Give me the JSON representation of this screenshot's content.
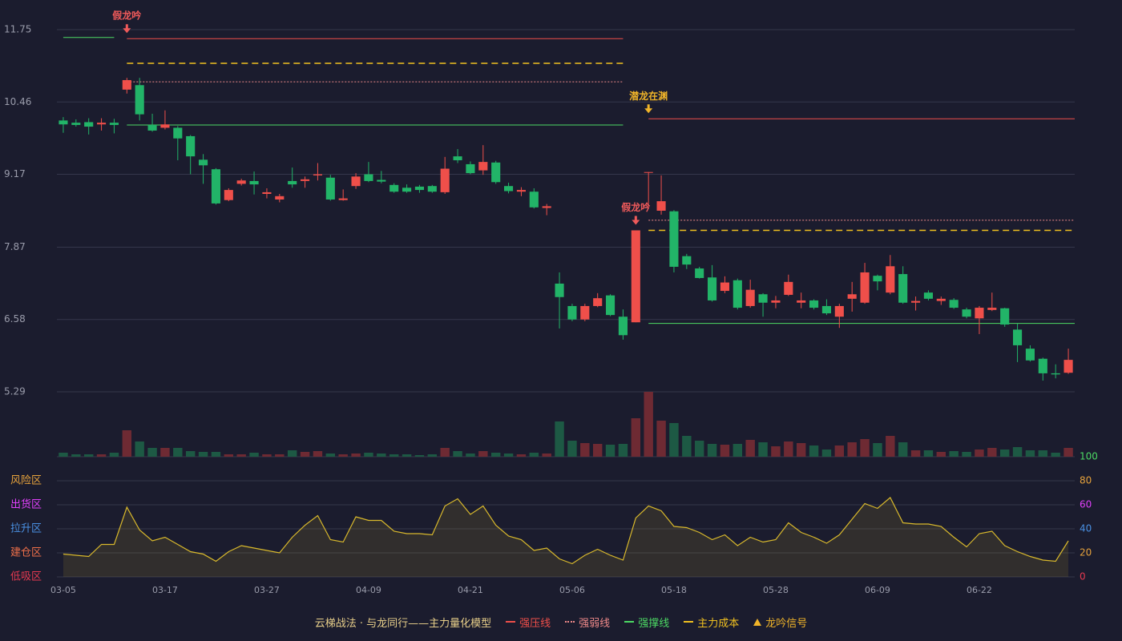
{
  "chart_data": {
    "type": "candlestick",
    "categories": [
      "03-05",
      null,
      null,
      null,
      null,
      null,
      null,
      null,
      "03-17",
      null,
      null,
      null,
      null,
      null,
      null,
      null,
      "03-27",
      null,
      null,
      null,
      null,
      null,
      null,
      null,
      "04-09",
      null,
      null,
      null,
      null,
      null,
      null,
      null,
      "04-21",
      null,
      null,
      null,
      null,
      null,
      null,
      null,
      "05-06",
      null,
      null,
      null,
      null,
      null,
      null,
      null,
      "05-18",
      null,
      null,
      null,
      null,
      null,
      null,
      null,
      "05-28",
      null,
      null,
      null,
      null,
      null,
      null,
      null,
      "06-09",
      null,
      null,
      null,
      null,
      null,
      null,
      null,
      "06-22",
      null,
      null,
      null,
      null,
      null,
      null,
      null
    ],
    "open": [
      10.13,
      10.09,
      10.1,
      10.06,
      10.09,
      10.68,
      10.76,
      10.05,
      10.0,
      10.0,
      9.85,
      9.43,
      9.26,
      8.71,
      9.0,
      9.05,
      8.82,
      8.72,
      9.05,
      9.05,
      9.15,
      9.11,
      8.71,
      8.96,
      9.17,
      9.07,
      8.98,
      8.93,
      8.95,
      8.96,
      8.85,
      9.49,
      9.35,
      9.24,
      9.38,
      8.96,
      8.86,
      8.86,
      8.57,
      7.22,
      6.82,
      6.58,
      6.82,
      7.01,
      6.63,
      6.53,
      9.2,
      8.52,
      8.51,
      7.71,
      7.49,
      7.33,
      7.09,
      7.28,
      6.82,
      7.03,
      6.88,
      7.02,
      6.88,
      6.92,
      6.82,
      6.63,
      6.95,
      6.88,
      7.36,
      7.06,
      7.39,
      6.88,
      7.06,
      6.91,
      6.93,
      6.76,
      6.6,
      6.75,
      6.78,
      6.4,
      6.06,
      5.88,
      5.62,
      5.63
    ],
    "close": [
      10.06,
      10.05,
      10.02,
      10.09,
      10.05,
      10.85,
      10.24,
      9.95,
      10.06,
      9.81,
      9.49,
      9.33,
      8.65,
      8.89,
      9.06,
      8.99,
      8.85,
      8.78,
      8.99,
      9.08,
      9.17,
      8.72,
      8.74,
      9.13,
      9.05,
      9.04,
      8.86,
      8.86,
      8.89,
      8.86,
      9.27,
      9.42,
      9.19,
      9.39,
      9.03,
      8.87,
      8.89,
      8.58,
      8.6,
      6.98,
      6.58,
      6.82,
      6.96,
      6.66,
      6.3,
      8.17,
      9.21,
      8.69,
      7.52,
      7.56,
      7.32,
      6.92,
      7.24,
      6.79,
      7.11,
      6.88,
      6.92,
      7.25,
      6.92,
      6.79,
      6.69,
      6.82,
      7.03,
      7.42,
      7.26,
      7.53,
      6.88,
      6.91,
      6.95,
      6.95,
      6.79,
      6.63,
      6.79,
      6.79,
      6.49,
      6.12,
      5.85,
      5.62,
      5.6,
      5.86
    ],
    "high": [
      10.19,
      10.15,
      10.17,
      10.17,
      10.16,
      10.89,
      10.89,
      10.25,
      10.31,
      10.03,
      9.87,
      9.53,
      9.28,
      8.92,
      9.09,
      9.22,
      8.92,
      8.82,
      9.29,
      9.13,
      9.37,
      9.16,
      8.9,
      9.19,
      9.39,
      9.23,
      9.01,
      8.99,
      8.98,
      8.98,
      9.48,
      9.62,
      9.4,
      9.69,
      9.41,
      9.02,
      8.94,
      8.92,
      8.64,
      7.42,
      6.86,
      6.86,
      7.05,
      7.03,
      6.76,
      8.17,
      9.21,
      9.15,
      8.53,
      7.75,
      7.52,
      7.55,
      7.35,
      7.31,
      7.29,
      7.05,
      7.0,
      7.38,
      7.06,
      6.94,
      6.94,
      6.86,
      7.25,
      7.59,
      7.38,
      7.73,
      7.53,
      6.99,
      7.1,
      6.99,
      6.96,
      6.79,
      6.82,
      7.06,
      6.79,
      6.51,
      6.12,
      5.9,
      5.78,
      6.06
    ],
    "low": [
      9.91,
      10.02,
      9.88,
      9.95,
      9.9,
      10.61,
      10.13,
      9.93,
      9.97,
      9.42,
      9.17,
      9.0,
      8.63,
      8.69,
      8.97,
      8.81,
      8.74,
      8.67,
      8.93,
      8.93,
      9.06,
      8.7,
      8.7,
      8.91,
      9.03,
      9.01,
      8.84,
      8.84,
      8.84,
      8.84,
      8.82,
      9.37,
      9.17,
      9.16,
      9.0,
      8.83,
      8.78,
      8.56,
      8.44,
      6.42,
      6.55,
      6.55,
      6.8,
      6.64,
      6.22,
      6.53,
      8.59,
      8.45,
      7.42,
      7.48,
      7.31,
      6.9,
      7.05,
      6.76,
      6.79,
      6.63,
      6.78,
      7.0,
      6.78,
      6.76,
      6.66,
      6.43,
      6.72,
      6.86,
      7.1,
      7.03,
      6.86,
      6.74,
      6.92,
      6.84,
      6.77,
      6.6,
      6.32,
      6.73,
      6.45,
      5.82,
      5.83,
      5.49,
      5.53,
      5.61
    ],
    "up_color": "#ef4f4a",
    "down_color": "#22b468",
    "ylim": [
      5.29,
      11.75
    ],
    "yticks": [
      11.75,
      10.46,
      9.17,
      7.87,
      6.58,
      5.29
    ],
    "grid": true,
    "volume": {
      "values": [
        5,
        3,
        3,
        3,
        5,
        33,
        19,
        11,
        11,
        11,
        7,
        6,
        6,
        3,
        3,
        5,
        3,
        3,
        8,
        6,
        7,
        4,
        3,
        4,
        5,
        4,
        3,
        3,
        2,
        3,
        11,
        7,
        4,
        7,
        5,
        4,
        3,
        5,
        4,
        44,
        20,
        17,
        16,
        15,
        16,
        48,
        81,
        45,
        42,
        26,
        20,
        16,
        15,
        16,
        21,
        18,
        13,
        19,
        17,
        14,
        9,
        14,
        18,
        22,
        17,
        26,
        18,
        8,
        8,
        6,
        7,
        6,
        9,
        11,
        9,
        12,
        8,
        8,
        5,
        11
      ],
      "ylim": [
        0,
        81
      ],
      "up_color": "#6e2a33",
      "down_color": "#1d5944"
    },
    "lines": [
      {
        "name": "强压线",
        "color": "#ef4f4a",
        "dash": "none",
        "values": [
          null,
          null,
          null,
          null,
          null,
          11.59,
          11.59,
          11.59,
          11.59,
          11.59,
          11.59,
          11.59,
          11.59,
          11.59,
          11.59,
          11.59,
          11.59,
          11.59,
          11.59,
          11.59,
          11.59,
          11.59,
          11.59,
          11.59,
          11.59,
          11.59,
          11.59,
          11.59,
          11.59,
          11.59,
          11.59,
          11.59,
          11.59,
          11.59,
          11.59,
          11.59,
          11.59,
          11.59,
          11.59,
          11.59,
          11.59,
          11.59,
          11.59,
          11.59,
          11.59,
          null,
          10.16,
          10.16,
          10.16,
          10.16,
          10.16,
          10.16,
          10.16,
          10.16,
          10.16,
          10.16,
          10.16,
          10.16,
          10.16,
          10.16,
          10.16,
          10.16,
          10.16,
          10.16,
          10.16,
          10.16,
          10.16,
          10.16,
          10.16,
          10.16,
          10.16,
          10.16,
          10.16,
          10.16,
          10.16,
          10.16,
          10.16,
          10.16,
          10.16,
          10.16
        ]
      },
      {
        "name": "强弱线",
        "color": "#f08a8a",
        "dash": "2 2",
        "values": [
          null,
          null,
          null,
          null,
          null,
          10.82,
          10.82,
          10.82,
          10.82,
          10.82,
          10.82,
          10.82,
          10.82,
          10.82,
          10.82,
          10.82,
          10.82,
          10.82,
          10.82,
          10.82,
          10.82,
          10.82,
          10.82,
          10.82,
          10.82,
          10.82,
          10.82,
          10.82,
          10.82,
          10.82,
          10.82,
          10.82,
          10.82,
          10.82,
          10.82,
          10.82,
          10.82,
          10.82,
          10.82,
          10.82,
          10.82,
          10.82,
          10.82,
          10.82,
          10.82,
          null,
          8.35,
          8.35,
          8.35,
          8.35,
          8.35,
          8.35,
          8.35,
          8.35,
          8.35,
          8.35,
          8.35,
          8.35,
          8.35,
          8.35,
          8.35,
          8.35,
          8.35,
          8.35,
          8.35,
          8.35,
          8.35,
          8.35,
          8.35,
          8.35,
          8.35,
          8.35,
          8.35,
          8.35,
          8.35,
          8.35,
          8.35,
          8.35,
          8.35,
          8.35
        ]
      },
      {
        "name": "强撑线",
        "color": "#4cd964",
        "dash": "none",
        "values": [
          11.61,
          11.61,
          11.61,
          11.61,
          11.61,
          10.05,
          10.05,
          10.05,
          10.05,
          10.05,
          10.05,
          10.05,
          10.05,
          10.05,
          10.05,
          10.05,
          10.05,
          10.05,
          10.05,
          10.05,
          10.05,
          10.05,
          10.05,
          10.05,
          10.05,
          10.05,
          10.05,
          10.05,
          10.05,
          10.05,
          10.05,
          10.05,
          10.05,
          10.05,
          10.05,
          10.05,
          10.05,
          10.05,
          10.05,
          10.05,
          10.05,
          10.05,
          10.05,
          10.05,
          10.05,
          null,
          6.51,
          6.51,
          6.51,
          6.51,
          6.51,
          6.51,
          6.51,
          6.51,
          6.51,
          6.51,
          6.51,
          6.51,
          6.51,
          6.51,
          6.51,
          6.51,
          6.51,
          6.51,
          6.51,
          6.51,
          6.51,
          6.51,
          6.51,
          6.51,
          6.51,
          6.51,
          6.51,
          6.51,
          6.51,
          6.51,
          6.51,
          6.51,
          6.51,
          6.51
        ]
      },
      {
        "name": "主力成本",
        "color": "#f0c020",
        "dash": "8 5",
        "values": [
          null,
          null,
          null,
          null,
          null,
          11.15,
          11.15,
          11.15,
          11.15,
          11.15,
          11.15,
          11.15,
          11.15,
          11.15,
          11.15,
          11.15,
          11.15,
          11.15,
          11.15,
          11.15,
          11.15,
          11.15,
          11.15,
          11.15,
          11.15,
          11.15,
          11.15,
          11.15,
          11.15,
          11.15,
          11.15,
          11.15,
          11.15,
          11.15,
          11.15,
          11.15,
          11.15,
          11.15,
          11.15,
          11.15,
          11.15,
          11.15,
          11.15,
          11.15,
          11.15,
          null,
          8.17,
          8.17,
          8.17,
          8.17,
          8.17,
          8.17,
          8.17,
          8.17,
          8.17,
          8.17,
          8.17,
          8.17,
          8.17,
          8.17,
          8.17,
          8.17,
          8.17,
          8.17,
          8.17,
          8.17,
          8.17,
          8.17,
          8.17,
          8.17,
          8.17,
          8.17,
          8.17,
          8.17,
          8.17,
          8.17,
          8.17,
          8.17,
          8.17,
          8.17
        ]
      }
    ],
    "signals": [
      null,
      null,
      null,
      null,
      null,
      "假龙吟",
      null,
      null,
      null,
      null,
      null,
      null,
      null,
      null,
      null,
      null,
      null,
      null,
      null,
      null,
      null,
      null,
      null,
      null,
      null,
      null,
      null,
      null,
      null,
      null,
      null,
      null,
      null,
      null,
      null,
      null,
      null,
      null,
      null,
      null,
      null,
      null,
      null,
      null,
      null,
      "假龙吟",
      "潜龙在渊",
      null,
      null,
      null,
      null,
      null,
      null,
      null,
      null,
      null,
      null,
      null,
      null,
      null,
      null,
      null,
      null,
      null,
      null,
      null,
      null,
      null,
      null,
      null,
      null,
      null,
      null,
      null,
      null,
      null,
      null,
      null,
      null,
      null
    ],
    "signal_colors": {
      "假龙吟": "#ef5a5a",
      "潜龙在渊": "#f0b429"
    },
    "signal_name": "龙吟信号",
    "signal_color": "#f0b429",
    "indicator": {
      "values": [
        19,
        18,
        17,
        27,
        27,
        58,
        39,
        30,
        33,
        27,
        21,
        19,
        13,
        21,
        26,
        24,
        22,
        20,
        33,
        43,
        51,
        31,
        29,
        50,
        47,
        47,
        38,
        36,
        36,
        35,
        59,
        65,
        52,
        59,
        43,
        34,
        31,
        22,
        24,
        15,
        11,
        18,
        23,
        18,
        14,
        49,
        59,
        55,
        42,
        41,
        37,
        31,
        35,
        26,
        33,
        29,
        31,
        45,
        37,
        33,
        28,
        35,
        48,
        61,
        57,
        66,
        45,
        44,
        44,
        42,
        33,
        25,
        36,
        38,
        26,
        21,
        17,
        14,
        13,
        30
      ],
      "color": "#d9b92c",
      "ylim": [
        0,
        100
      ],
      "yticks": [
        0,
        20,
        40,
        60,
        80,
        100
      ],
      "ytick_colors": [
        "#e53950",
        "#e6a23c",
        "#4a90e2",
        "#e040fb",
        "#e6a23c",
        "#4cd964"
      ],
      "zones": [
        {
          "value": 80,
          "label": "风险区",
          "color": "#e6a23c"
        },
        {
          "value": 60,
          "label": "出货区",
          "color": "#e040fb"
        },
        {
          "value": 40,
          "label": "拉升区",
          "color": "#4a90e2"
        },
        {
          "value": 20,
          "label": "建仓区",
          "color": "#f0704a"
        },
        {
          "value": 0,
          "label": "低吸区",
          "color": "#e53950"
        }
      ]
    },
    "legend_title": "云梯战法 · 与龙同行——主力量化模型"
  }
}
